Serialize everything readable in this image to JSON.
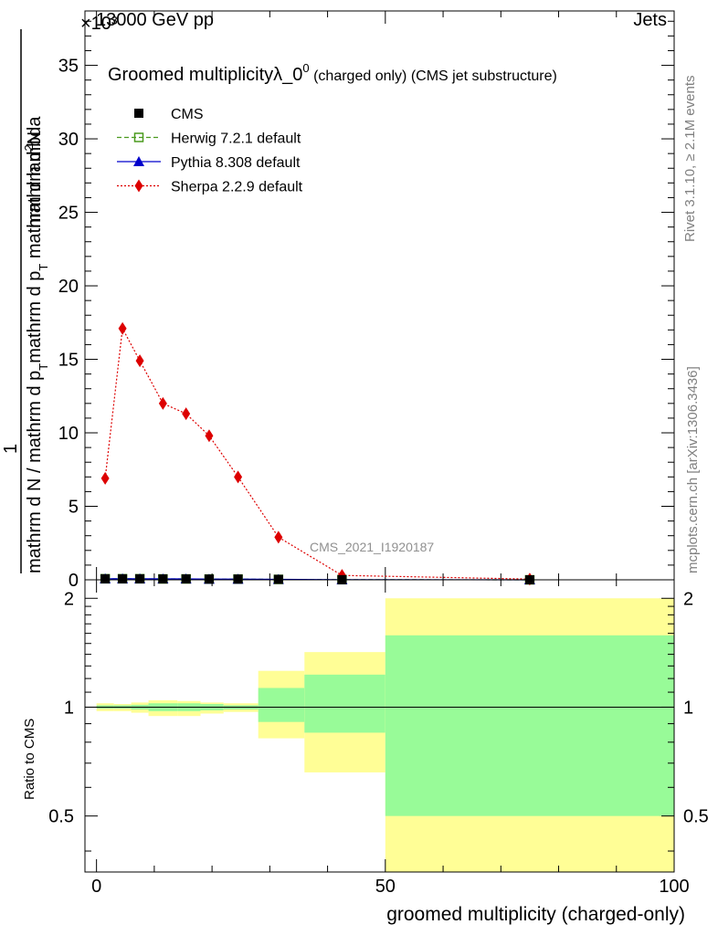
{
  "header": {
    "left": "13000 GeV pp",
    "right": "Jets",
    "exponent": "×10³"
  },
  "side_labels": {
    "rivet": "Rivet 3.1.10, ≥ 2.1M events",
    "mcplots": "mcplots.cern.ch [arXiv:1306.3436]"
  },
  "chart_data": [
    {
      "type": "line",
      "title": "Groomed multiplicityλ_0⁰ (charged only) (CMS jet substructure)",
      "title_main": "Groomed multiplicityλ_0",
      "title_sup": "0",
      "title_tail": " (charged only) (CMS jet substructure)",
      "ylabel_num_prefix": "1",
      "ylabel_num_suffix": "mathrm d",
      "ylabel_num_sup": "2",
      "ylabel_num_end": "N",
      "ylabel_den": "mathrm d N / mathrm d p",
      "ylabel_den_sub": "T",
      "ylabel_den_tail": "mathrm d p",
      "ylabel_den_sub2": "T",
      "ylabel_den_end": " mathrm d lambda",
      "ylim": [
        0,
        38.7
      ],
      "xlim": [
        -2,
        100
      ],
      "yticks": [
        0,
        5,
        10,
        15,
        20,
        25,
        30,
        35
      ],
      "ytick_labels": [
        "0",
        "5",
        "10",
        "15",
        "20",
        "25",
        "30",
        "35"
      ],
      "watermark": "CMS_2021_I1920187",
      "legend_position": "top-left",
      "series": [
        {
          "name": "CMS",
          "color": "#000000",
          "marker": "square",
          "x": [
            1.5,
            4.5,
            7.5,
            11.5,
            15.5,
            19.5,
            24.5,
            31.5,
            42.5,
            75
          ],
          "y": [
            0.07,
            0.07,
            0.07,
            0.06,
            0.06,
            0.05,
            0.05,
            0.03,
            0.01,
            0.0
          ]
        },
        {
          "name": "Herwig 7.2.1 default",
          "color": "#4a9a1e",
          "marker": "open-square",
          "dash": "dashed",
          "x": [
            1.5,
            4.5,
            7.5,
            11.5,
            15.5,
            19.5,
            24.5,
            31.5,
            42.5,
            75
          ],
          "y": [
            0.07,
            0.07,
            0.07,
            0.06,
            0.06,
            0.05,
            0.05,
            0.03,
            0.01,
            0.0
          ]
        },
        {
          "name": "Pythia 8.308 default",
          "color": "#0000cc",
          "marker": "triangle",
          "dash": "solid",
          "x": [
            1.5,
            4.5,
            7.5,
            11.5,
            15.5,
            19.5,
            24.5,
            31.5,
            42.5,
            75
          ],
          "y": [
            0.07,
            0.07,
            0.07,
            0.06,
            0.06,
            0.05,
            0.05,
            0.03,
            0.01,
            0.0
          ]
        },
        {
          "name": "Sherpa 2.2.9 default",
          "color": "#dd0000",
          "marker": "diamond",
          "dash": "dotted",
          "x": [
            1.5,
            4.5,
            7.5,
            11.5,
            15.5,
            19.5,
            24.5,
            31.5,
            42.5,
            75
          ],
          "y": [
            6.9,
            17.1,
            14.9,
            12.0,
            11.3,
            9.8,
            7.0,
            2.9,
            0.3,
            0.05
          ]
        }
      ]
    },
    {
      "type": "area",
      "ylabel": "Ratio to CMS",
      "xlabel": "groomed multiplicity (charged-only)",
      "ylim": [
        0.35,
        2.25
      ],
      "xlim": [
        -2,
        100
      ],
      "log_y": true,
      "yticks": [
        0.5,
        1,
        2
      ],
      "ytick_labels": [
        "0.5",
        "1",
        "2"
      ],
      "xticks": [
        0,
        50,
        100
      ],
      "xtick_labels": [
        "0",
        "50",
        "100"
      ],
      "reference_line": 1,
      "band_colors": {
        "outer": "#fffe96",
        "inner": "#98fb98"
      },
      "bins": [
        {
          "x0": 0,
          "x1": 3,
          "outer": [
            0.975,
            1.025
          ],
          "inner": [
            0.99,
            1.012
          ]
        },
        {
          "x0": 3,
          "x1": 6,
          "outer": [
            0.975,
            1.02
          ],
          "inner": [
            0.99,
            1.012
          ]
        },
        {
          "x0": 6,
          "x1": 9,
          "outer": [
            0.965,
            1.03
          ],
          "inner": [
            0.985,
            1.015
          ]
        },
        {
          "x0": 9,
          "x1": 14,
          "outer": [
            0.945,
            1.045
          ],
          "inner": [
            0.975,
            1.025
          ]
        },
        {
          "x0": 14,
          "x1": 18,
          "outer": [
            0.945,
            1.04
          ],
          "inner": [
            0.975,
            1.025
          ]
        },
        {
          "x0": 18,
          "x1": 22,
          "outer": [
            0.96,
            1.03
          ],
          "inner": [
            0.98,
            1.02
          ]
        },
        {
          "x0": 22,
          "x1": 28,
          "outer": [
            0.97,
            1.025
          ],
          "inner": [
            0.985,
            1.012
          ]
        },
        {
          "x0": 28,
          "x1": 36,
          "outer": [
            0.82,
            1.26
          ],
          "inner": [
            0.91,
            1.13
          ]
        },
        {
          "x0": 36,
          "x1": 50,
          "outer": [
            0.66,
            1.42
          ],
          "inner": [
            0.85,
            1.23
          ]
        },
        {
          "x0": 50,
          "x1": 100,
          "outer": [
            0.35,
            2.0
          ],
          "inner": [
            0.5,
            1.58
          ]
        }
      ]
    }
  ]
}
